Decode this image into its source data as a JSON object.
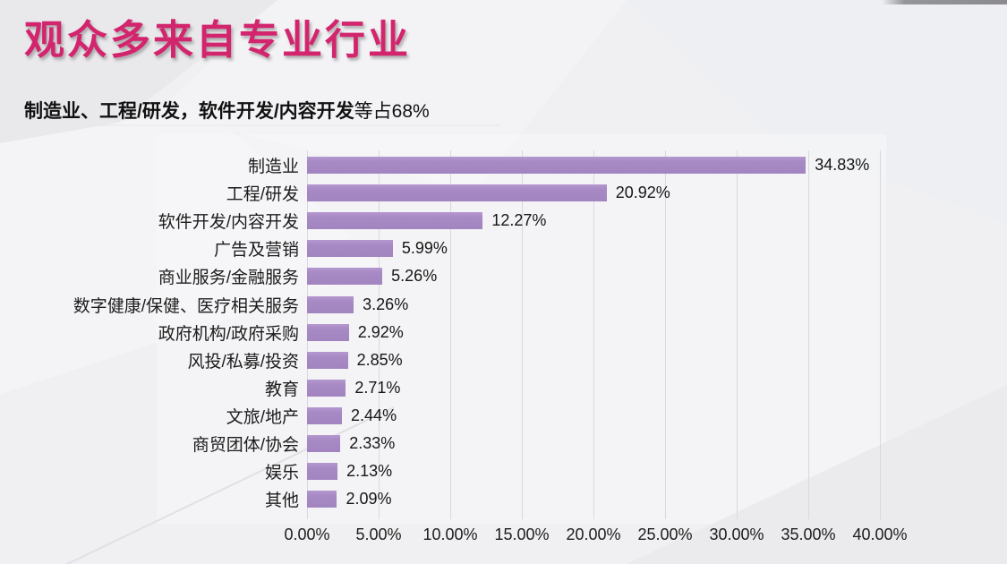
{
  "page": {
    "title": "观众多来自专业行业",
    "subtitle_bold": "制造业、工程/研发，软件开发/内容开发",
    "subtitle_regular": "等占68%"
  },
  "colors": {
    "title": "#d3256d",
    "bar": "#a789c4",
    "gridline": "#d8d8e3",
    "text": "#1c1c1c"
  },
  "chart_data": {
    "type": "bar",
    "orientation": "horizontal",
    "title": "",
    "xlabel": "",
    "ylabel": "",
    "categories": [
      "制造业",
      "工程/研发",
      "软件开发/内容开发",
      "广告及营销",
      "商业服务/金融服务",
      "数字健康/保健、医疗相关服务",
      "政府机构/政府采购",
      "风投/私募/投资",
      "教育",
      "文旅/地产",
      "商贸团体/协会",
      "娱乐",
      "其他"
    ],
    "values": [
      34.83,
      20.92,
      12.27,
      5.99,
      5.26,
      3.26,
      2.92,
      2.85,
      2.71,
      2.44,
      2.33,
      2.13,
      2.09
    ],
    "value_labels": [
      "34.83%",
      "20.92%",
      "12.27%",
      "5.99%",
      "5.26%",
      "3.26%",
      "2.92%",
      "2.85%",
      "2.71%",
      "2.44%",
      "2.33%",
      "2.13%",
      "2.09%"
    ],
    "xlim": [
      0,
      40
    ],
    "x_ticks": [
      "0.00%",
      "5.00%",
      "10.00%",
      "15.00%",
      "20.00%",
      "25.00%",
      "30.00%",
      "35.00%",
      "40.00%"
    ],
    "grid": true,
    "legend": "none",
    "bar_color": "#a789c4"
  }
}
